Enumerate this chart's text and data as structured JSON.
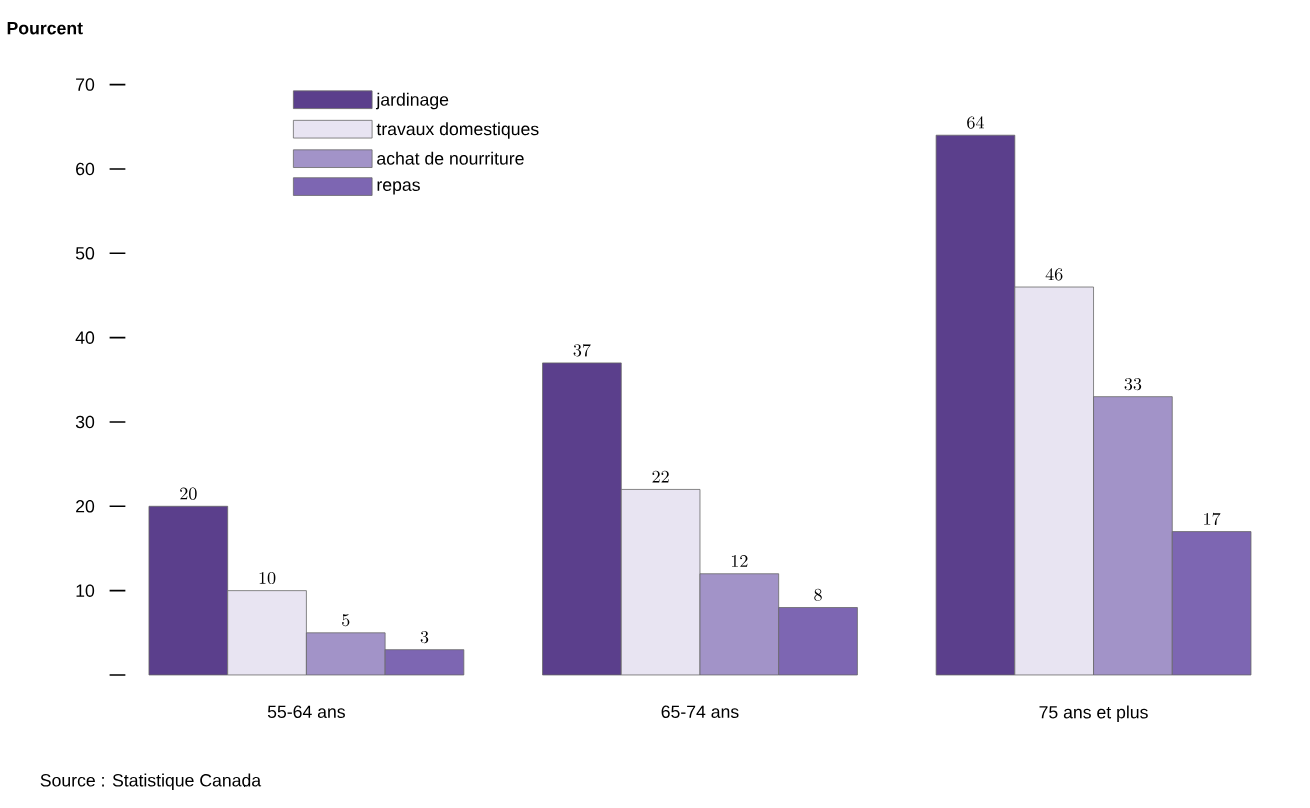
{
  "chart_data": {
    "type": "bar",
    "ylabel": "Pourcent",
    "categories": [
      "55-64 ans",
      "65-74 ans",
      "75 ans et plus"
    ],
    "series": [
      {
        "name": "jardinage",
        "color": "#5b3f8c",
        "values": [
          20,
          37,
          64
        ]
      },
      {
        "name": "travaux domestiques",
        "color": "#e8e4f2",
        "values": [
          10,
          22,
          46
        ]
      },
      {
        "name": "achat de nourriture",
        "color": "#a293c8",
        "values": [
          5,
          12,
          33
        ]
      },
      {
        "name": "repas",
        "color": "#7d66b2",
        "values": [
          3,
          8,
          17
        ]
      }
    ],
    "ylim": [
      0,
      70
    ],
    "yticks": [
      {
        "value": 0,
        "label": null
      },
      10,
      20,
      30,
      40,
      50,
      60,
      70
    ],
    "data_labels": true,
    "legend": "top left",
    "grid": false,
    "annotations": [
      "Source : Statistique Canada"
    ]
  }
}
